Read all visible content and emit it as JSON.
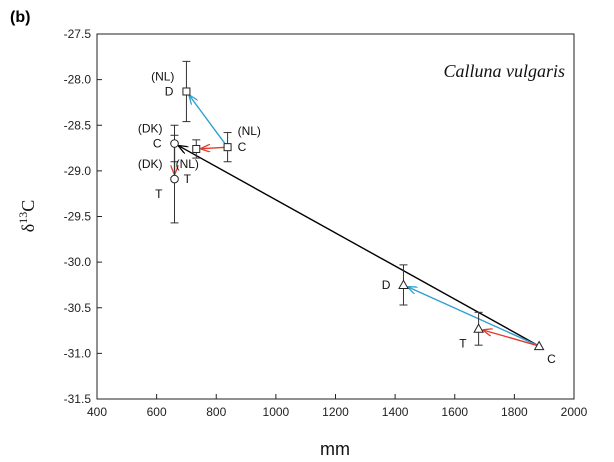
{
  "chart_data": {
    "type": "scatter",
    "panel_label": "(b)",
    "annotation": "Calluna vulgaris",
    "xlabel": "mm",
    "ylabel_main": "δ",
    "ylabel_sup": "13",
    "ylabel_tail": "C",
    "xlim": [
      400,
      2000
    ],
    "ylim": [
      -31.5,
      -27.5
    ],
    "xticks": [
      400,
      600,
      800,
      1000,
      1200,
      1400,
      1600,
      1800,
      2000
    ],
    "yticks": [
      -27.5,
      -28.0,
      -28.5,
      -29.0,
      -29.5,
      -30.0,
      -30.5,
      -31.0,
      -31.5
    ],
    "xtick_labels": [
      "400",
      "600",
      "800",
      "1000",
      "1200",
      "1400",
      "1600",
      "1800",
      "2000"
    ],
    "ytick_labels": [
      "-27.5",
      "-28.0",
      "-28.5",
      "-29.0",
      "-29.5",
      "-30.0",
      "-30.5",
      "-31.0",
      "-31.5"
    ],
    "grid": false,
    "points": [
      {
        "id": "nl_d",
        "x": 700,
        "y": -28.13,
        "err": 0.33,
        "marker": "square",
        "labels": [
          {
            "text": "D",
            "pos": "left"
          },
          {
            "text": "(NL)",
            "pos": "upleft"
          }
        ]
      },
      {
        "id": "nl_c",
        "x": 838,
        "y": -28.74,
        "err": 0.16,
        "marker": "square",
        "labels": [
          {
            "text": "C",
            "pos": "right"
          },
          {
            "text": "(NL)",
            "pos": "upright"
          }
        ]
      },
      {
        "id": "nl_t",
        "x": 733,
        "y": -28.76,
        "err": 0.1,
        "marker": "square",
        "labels": [
          {
            "text": "(NL)",
            "pos": "below1"
          },
          {
            "text": "T",
            "pos": "below2"
          }
        ]
      },
      {
        "id": "dk_c",
        "x": 660,
        "y": -28.7,
        "err": 0.2,
        "marker": "circle",
        "labels": [
          {
            "text": "(DK)",
            "pos": "upleft"
          },
          {
            "text": "C",
            "pos": "left"
          }
        ]
      },
      {
        "id": "dk_t",
        "x": 660,
        "y": -29.09,
        "err": 0.48,
        "marker": "circle",
        "labels": [
          {
            "text": "(DK)",
            "pos": "upleft"
          },
          {
            "text": "T",
            "pos": "downleft"
          }
        ]
      },
      {
        "id": "x_d",
        "x": 1428,
        "y": -30.25,
        "err": 0.22,
        "marker": "triangle",
        "labels": [
          {
            "text": "D",
            "pos": "left"
          }
        ]
      },
      {
        "id": "x_t",
        "x": 1680,
        "y": -30.73,
        "err": 0.18,
        "marker": "triangle",
        "labels": [
          {
            "text": "T",
            "pos": "downleft"
          }
        ]
      },
      {
        "id": "x_c",
        "x": 1883,
        "y": -30.92,
        "err": 0.0,
        "marker": "triangle",
        "labels": [
          {
            "text": "C",
            "pos": "downright"
          }
        ]
      }
    ],
    "arrows": [
      {
        "from": "x_c",
        "to": "dk_c",
        "color": "#000000"
      },
      {
        "from": "nl_c",
        "to": "nl_d",
        "color": "#2f9fd0"
      },
      {
        "from": "nl_c",
        "to": "nl_t",
        "color": "#e23b2a"
      },
      {
        "from": "dk_c",
        "to": "dk_t",
        "color": "#e23b2a"
      },
      {
        "from": "x_c",
        "to": "x_d",
        "color": "#2f9fd0"
      },
      {
        "from": "x_c",
        "to": "x_t",
        "color": "#e23b2a"
      }
    ]
  }
}
